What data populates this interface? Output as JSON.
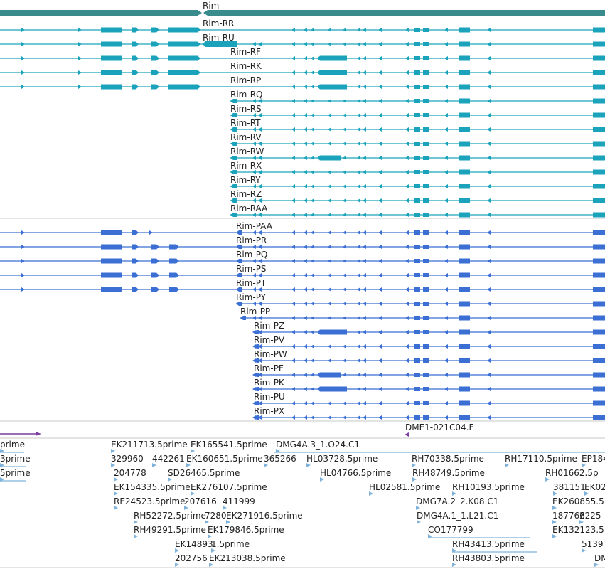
{
  "colors": {
    "gene": "#3a8c8c",
    "teal": "#1aa3bb",
    "blue": "#3b6fd4",
    "purple": "#7b3fa0",
    "est": "#7fb3dc"
  },
  "gene_label": "Rim",
  "top_transcripts": [
    "Rim-RR",
    "Rim-RU",
    "Rim-RF",
    "Rim-RK",
    "Rim-RP",
    "Rim-RQ",
    "Rim-RS",
    "Rim-RT",
    "Rim-RV",
    "Rim-RW",
    "Rim-RX",
    "Rim-RY",
    "Rim-RZ",
    "Rim-RAA"
  ],
  "protein_transcripts": [
    "Rim-PAA",
    "Rim-PR",
    "Rim-PQ",
    "Rim-PS",
    "Rim-PT",
    "Rim-PY",
    "Rim-PP",
    "Rim-PZ",
    "Rim-PV",
    "Rim-PW",
    "Rim-PF",
    "Rim-PK",
    "Rim-PU",
    "Rim-PX"
  ],
  "clone_label": "DME1-021C04.F",
  "est_labels": [
    "prime",
    "3prime",
    "5prime",
    "EK211713.5prime",
    "EK165541.5prime",
    "DMG4A.3_1.O24.C1",
    "329960",
    "442261",
    "EK160651.5prime",
    "365266",
    "HL03728.5prime",
    "RH70338.5prime",
    "RH17110.5prime",
    "EP184",
    "204778",
    "SD26465.5prime",
    "HL04766.5prime",
    "RH48749.5prime",
    "RH01662.5p",
    "EK154335.5prime",
    "EK276107.5prime",
    "HL02581.5prime",
    "RH10193.5prime",
    "381151",
    "EK02",
    "RE24523.5prime",
    "207616",
    "411999",
    "DMG7A.2_2.K08.C1",
    "EK260855.5",
    "RH52272.5prime",
    "7280",
    "EK271916.5prime",
    "DMG4A.1_1.L21.C1",
    "187766",
    "2225",
    "RH49291.5prime",
    "EK179846.5prime",
    "CO177799",
    "EK132123.5",
    "EK14893",
    "1.5prime",
    "RH43413.5prime",
    "5139",
    "202756",
    "EK213038.5prime",
    "RH43803.5prime",
    "DM"
  ]
}
